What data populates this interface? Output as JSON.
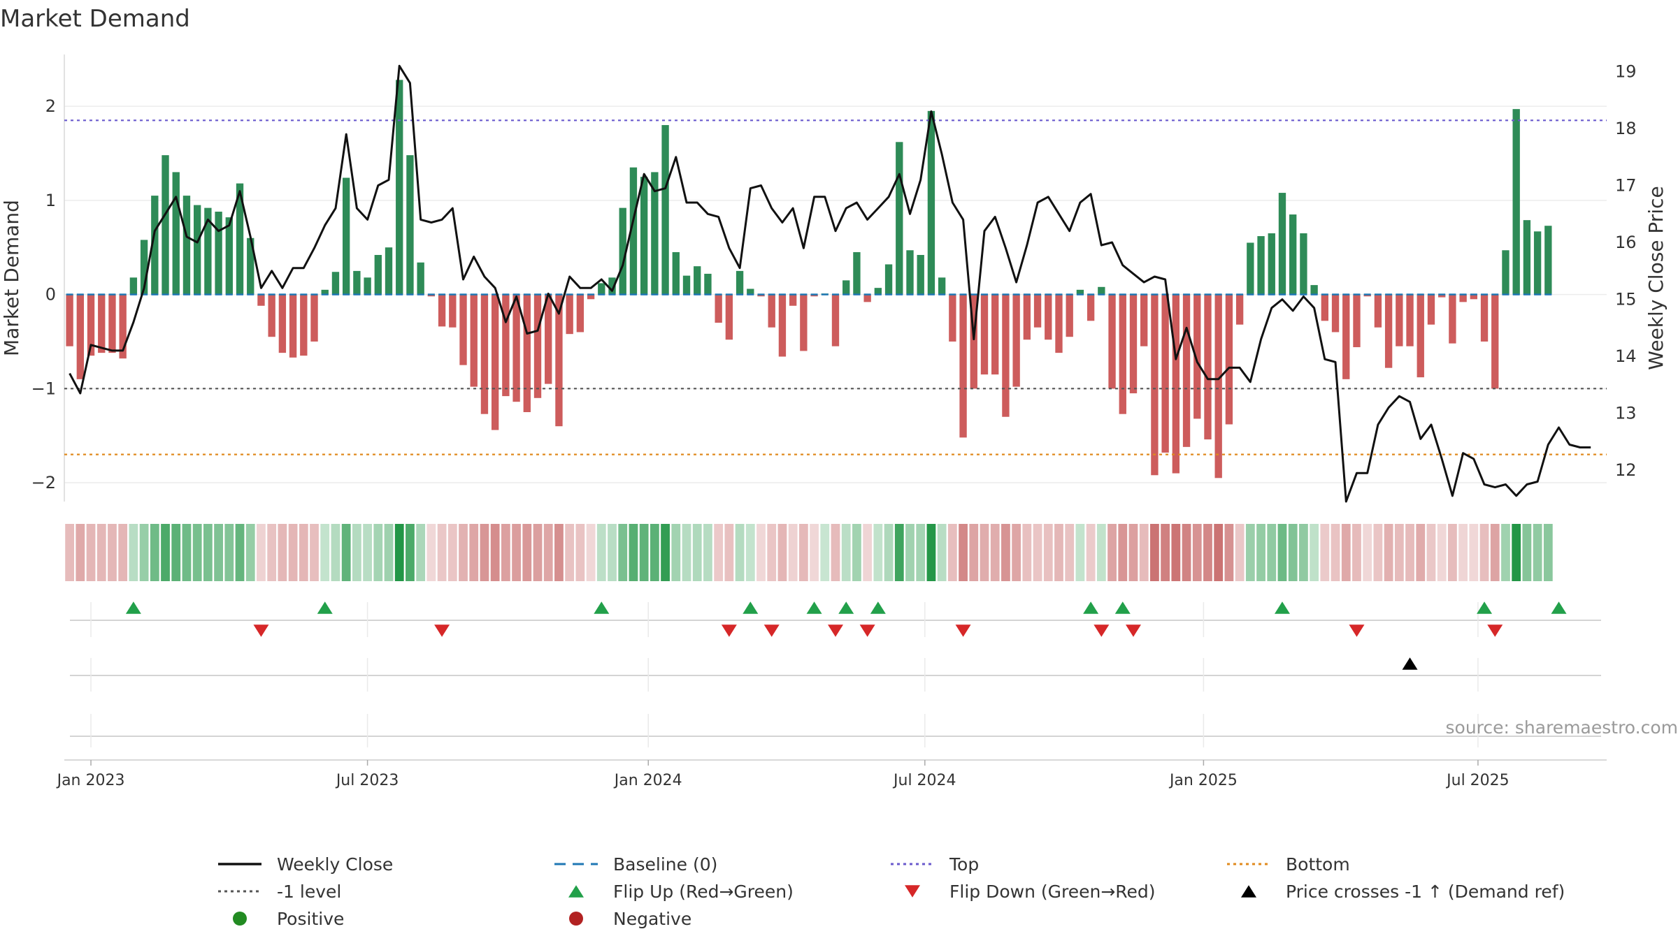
{
  "title": "Market Demand",
  "source_note": "source: sharemaestro.com",
  "colors": {
    "positive_bar": "#2e8b57",
    "negative_bar": "#cd5c5c",
    "close_line": "#111111",
    "baseline": "#1f77b4",
    "top_line": "#6a5acd",
    "bottom_line": "#e08a1e",
    "minus1_line": "#555555",
    "flip_up": "#22a04a",
    "flip_down": "#d62728",
    "cross_marker": "#000000",
    "positive_dot": "#228b22",
    "negative_dot": "#b22222"
  },
  "legend": [
    {
      "key": "weekly_close",
      "label": "Weekly Close",
      "symbol": "line",
      "color": "#111111"
    },
    {
      "key": "baseline",
      "label": "Baseline (0)",
      "symbol": "dash",
      "color": "#1f77b4"
    },
    {
      "key": "top",
      "label": "Top",
      "symbol": "dot",
      "color": "#6a5acd"
    },
    {
      "key": "bottom",
      "label": "Bottom",
      "symbol": "dot",
      "color": "#e08a1e"
    },
    {
      "key": "minus1",
      "label": "-1 level",
      "symbol": "dot",
      "color": "#555555"
    },
    {
      "key": "flip_up",
      "label": "Flip Up (Red→Green)",
      "symbol": "triangle-up",
      "color": "#22a04a"
    },
    {
      "key": "flip_down",
      "label": "Flip Down (Green→Red)",
      "symbol": "triangle-down",
      "color": "#d62728"
    },
    {
      "key": "price_cross",
      "label": "Price crosses -1 ↑ (Demand ref)",
      "symbol": "triangle-up",
      "color": "#000000"
    },
    {
      "key": "positive",
      "label": "Positive",
      "symbol": "circle",
      "color": "#228b22"
    },
    {
      "key": "negative",
      "label": "Negative",
      "symbol": "circle",
      "color": "#b22222"
    }
  ],
  "chart_data": {
    "type": "bar",
    "title": "Market Demand",
    "ylabel": "Market Demand",
    "y2label": "Weekly Close Price",
    "ylim": [
      -2.2,
      2.55
    ],
    "y2lim": [
      11.45,
      19.3
    ],
    "yticks": [
      -2,
      -1,
      0,
      1,
      2
    ],
    "y2ticks": [
      12,
      13,
      14,
      15,
      16,
      17,
      18,
      19
    ],
    "x_start_week": -0.5,
    "x_end_week": 144.5,
    "xtick_labels": [
      {
        "label": "Jan 2023",
        "week": 2
      },
      {
        "label": "Jul 2023",
        "week": 28
      },
      {
        "label": "Jan 2024",
        "week": 54.4
      },
      {
        "label": "Jul 2024",
        "week": 80.4
      },
      {
        "label": "Jan 2025",
        "week": 106.6
      },
      {
        "label": "Jul 2025",
        "week": 132.4
      }
    ],
    "reference_lines": {
      "top": 1.85,
      "bottom": -1.7,
      "minus1": -1.0,
      "baseline": 0
    },
    "demand": [
      -0.55,
      -0.9,
      -0.65,
      -0.62,
      -0.62,
      -0.68,
      0.18,
      0.58,
      1.05,
      1.48,
      1.3,
      1.05,
      0.95,
      0.92,
      0.88,
      0.82,
      1.18,
      0.6,
      -0.12,
      -0.45,
      -0.62,
      -0.67,
      -0.65,
      -0.5,
      0.05,
      0.24,
      1.24,
      0.25,
      0.18,
      0.42,
      0.5,
      2.28,
      1.48,
      0.34,
      -0.02,
      -0.34,
      -0.35,
      -0.75,
      -0.98,
      -1.27,
      -1.44,
      -1.08,
      -1.14,
      -1.25,
      -1.1,
      -0.95,
      -1.4,
      -0.42,
      -0.4,
      -0.05,
      0.12,
      0.18,
      0.92,
      1.35,
      1.25,
      1.3,
      1.8,
      0.45,
      0.2,
      0.3,
      0.22,
      -0.3,
      -0.48,
      0.25,
      0.06,
      -0.02,
      -0.35,
      -0.66,
      -0.12,
      -0.6,
      -0.02,
      0.01,
      -0.55,
      0.15,
      0.45,
      -0.08,
      0.07,
      0.32,
      1.62,
      0.47,
      0.42,
      1.95,
      0.18,
      -0.5,
      -1.52,
      -1.0,
      -0.85,
      -0.85,
      -1.3,
      -0.98,
      -0.48,
      -0.35,
      -0.48,
      -0.62,
      -0.45,
      0.05,
      -0.28,
      0.08,
      -1.0,
      -1.27,
      -1.05,
      -0.55,
      -1.92,
      -1.68,
      -1.9,
      -1.62,
      -1.32,
      -1.54,
      -1.95,
      -1.38,
      -0.32,
      0.55,
      0.62,
      0.65,
      1.08,
      0.85,
      0.65,
      0.1,
      -0.28,
      -0.4,
      -0.9,
      -0.56,
      -0.02,
      -0.35,
      -0.78,
      -0.55,
      -0.55,
      -0.88,
      -0.32,
      -0.03,
      -0.52,
      -0.08,
      -0.05,
      -0.5,
      -1.0,
      0.47,
      1.97,
      0.79,
      0.67,
      0.73
    ],
    "weekly_close": [
      13.7,
      13.35,
      14.2,
      14.15,
      14.1,
      14.1,
      14.6,
      15.2,
      16.2,
      16.5,
      16.8,
      16.1,
      16.0,
      16.4,
      16.2,
      16.3,
      16.9,
      16.1,
      15.2,
      15.5,
      15.2,
      15.55,
      15.55,
      15.9,
      16.3,
      16.6,
      17.9,
      16.6,
      16.4,
      17.0,
      17.1,
      19.1,
      18.8,
      16.4,
      16.35,
      16.4,
      16.6,
      15.35,
      15.75,
      15.4,
      15.2,
      14.6,
      15.05,
      14.4,
      14.45,
      15.1,
      14.75,
      15.4,
      15.2,
      15.2,
      15.35,
      15.15,
      15.6,
      16.4,
      17.2,
      16.9,
      16.95,
      17.5,
      16.7,
      16.7,
      16.5,
      16.45,
      15.9,
      15.55,
      16.95,
      17.0,
      16.6,
      16.35,
      16.6,
      15.9,
      16.8,
      16.8,
      16.2,
      16.6,
      16.7,
      16.4,
      16.6,
      16.8,
      17.2,
      16.5,
      17.1,
      18.3,
      17.55,
      16.7,
      16.4,
      14.3,
      16.2,
      16.45,
      15.9,
      15.3,
      15.95,
      16.7,
      16.8,
      16.5,
      16.2,
      16.7,
      16.85,
      15.95,
      16.0,
      15.6,
      15.45,
      15.3,
      15.4,
      15.35,
      13.95,
      14.5,
      13.9,
      13.6,
      13.6,
      13.8,
      13.8,
      13.55,
      14.3,
      14.85,
      15.0,
      14.8,
      15.05,
      14.85,
      13.95,
      13.9,
      11.45,
      11.95,
      11.95,
      12.8,
      13.1,
      13.3,
      13.2,
      12.55,
      12.8,
      12.2,
      11.55,
      12.3,
      12.2,
      11.75,
      11.7,
      11.75,
      11.55,
      11.75,
      11.8,
      12.45,
      12.75,
      12.45,
      12.4,
      12.4
    ],
    "flip_up_weeks": [
      6,
      24,
      50,
      64,
      70,
      73,
      76,
      96,
      99,
      114,
      133,
      140
    ],
    "flip_down_weeks": [
      18,
      35,
      62,
      66,
      72,
      75,
      84,
      97,
      100,
      121,
      134
    ],
    "price_cross_weeks": [
      126
    ]
  }
}
